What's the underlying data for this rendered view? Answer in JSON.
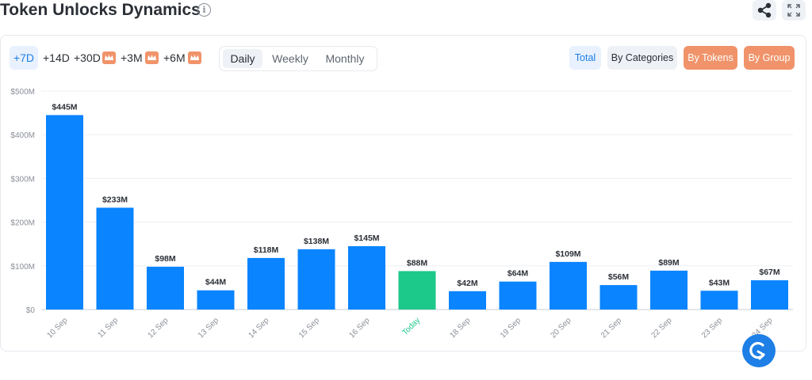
{
  "header": {
    "title": "Token Unlocks Dynamics",
    "info_icon": "info-icon",
    "share_icon": "share-icon",
    "expand_icon": "expand-icon"
  },
  "ranges": [
    {
      "label": "+7D",
      "active": true,
      "premium": false
    },
    {
      "label": "+14D",
      "active": false,
      "premium": false
    },
    {
      "label": "+30D",
      "active": false,
      "premium": true
    },
    {
      "label": "+3M",
      "active": false,
      "premium": true
    },
    {
      "label": "+6M",
      "active": false,
      "premium": true
    }
  ],
  "periods": [
    {
      "label": "Daily",
      "active": true
    },
    {
      "label": "Weekly",
      "active": false
    },
    {
      "label": "Monthly",
      "active": false
    }
  ],
  "views": {
    "total": "Total",
    "by_categories": "By Categories",
    "by_tokens": "By Tokens",
    "by_group": "By Group"
  },
  "colors": {
    "bar": "#0a84ff",
    "today_bar": "#1cc88a",
    "today_label": "#1cc88a",
    "premium": "#f0936a",
    "accent": "#1e7fe6"
  },
  "chart_data": {
    "type": "bar",
    "categories": [
      "10 Sep",
      "11 Sep",
      "12 Sep",
      "13 Sep",
      "14 Sep",
      "15 Sep",
      "16 Sep",
      "Today",
      "18 Sep",
      "19 Sep",
      "20 Sep",
      "21 Sep",
      "22 Sep",
      "23 Sep",
      "24 Sep"
    ],
    "values": [
      445,
      233,
      98,
      44,
      118,
      138,
      145,
      88,
      42,
      64,
      109,
      56,
      89,
      43,
      67
    ],
    "value_labels": [
      "$445M",
      "$233M",
      "$98M",
      "$44M",
      "$118M",
      "$138M",
      "$145M",
      "$88M",
      "$42M",
      "$64M",
      "$109M",
      "$56M",
      "$89M",
      "$43M",
      "$67M"
    ],
    "highlight_index": 7,
    "yticks": [
      0,
      100,
      200,
      300,
      400,
      500
    ],
    "ytick_labels": [
      "$0",
      "$100M",
      "$200M",
      "$300M",
      "$400M",
      "$500M"
    ],
    "ylim": [
      0,
      500
    ],
    "unit": "million USD",
    "grid": true
  }
}
